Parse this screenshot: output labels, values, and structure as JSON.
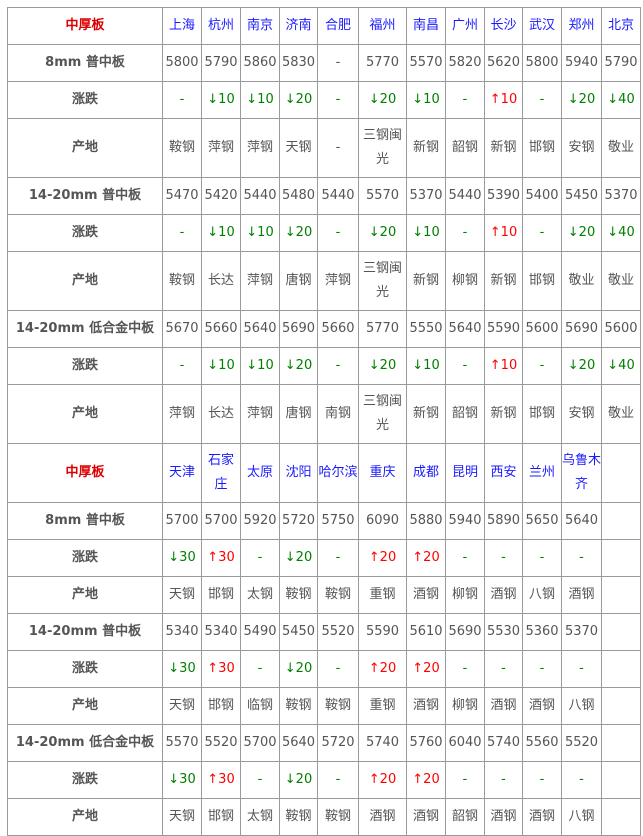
{
  "colors": {
    "header": "#dd0000",
    "city": "#1a1aff",
    "up": "#ff0000",
    "down": "#008000"
  },
  "sections": [
    {
      "header": "中厚板",
      "cities": [
        "上海",
        "杭州",
        "南京",
        "济南",
        "合肥",
        "福州",
        "南昌",
        "广州",
        "长沙",
        "武汉",
        "郑州",
        "北京"
      ],
      "products": [
        {
          "name": "8mm 普中板",
          "prices": [
            "5800",
            "5790",
            "5860",
            "5830",
            "-",
            "5770",
            "5570",
            "5820",
            "5620",
            "5800",
            "5940",
            "5790"
          ],
          "change_label": "涨跌",
          "changes": [
            "-",
            "↓10",
            "↓10",
            "↓20",
            "-",
            "↓20",
            "↓10",
            "-",
            "↑10",
            "-",
            "↓20",
            "↓40"
          ],
          "origin_label": "产地",
          "origins": [
            "鞍钢",
            "萍钢",
            "萍钢",
            "天钢",
            "-",
            "三钢闽光",
            "新钢",
            "韶钢",
            "新钢",
            "邯钢",
            "安钢",
            "敬业"
          ]
        },
        {
          "name": "14-20mm 普中板",
          "prices": [
            "5470",
            "5420",
            "5440",
            "5480",
            "5440",
            "5570",
            "5370",
            "5440",
            "5390",
            "5400",
            "5450",
            "5370"
          ],
          "change_label": "涨跌",
          "changes": [
            "-",
            "↓10",
            "↓10",
            "↓20",
            "-",
            "↓20",
            "↓10",
            "-",
            "↑10",
            "-",
            "↓20",
            "↓40"
          ],
          "origin_label": "产地",
          "origins": [
            "鞍钢",
            "长达",
            "萍钢",
            "唐钢",
            "萍钢",
            "三钢闽光",
            "新钢",
            "柳钢",
            "新钢",
            "邯钢",
            "敬业",
            "敬业"
          ]
        },
        {
          "name": "14-20mm 低合金中板",
          "prices": [
            "5670",
            "5660",
            "5640",
            "5690",
            "5660",
            "5770",
            "5550",
            "5640",
            "5590",
            "5600",
            "5690",
            "5600"
          ],
          "change_label": "涨跌",
          "changes": [
            "-",
            "↓10",
            "↓10",
            "↓20",
            "-",
            "↓20",
            "↓10",
            "-",
            "↑10",
            "-",
            "↓20",
            "↓40"
          ],
          "origin_label": "产地",
          "origins": [
            "萍钢",
            "长达",
            "萍钢",
            "唐钢",
            "南钢",
            "三钢闽光",
            "新钢",
            "韶钢",
            "新钢",
            "邯钢",
            "安钢",
            "敬业"
          ]
        }
      ]
    },
    {
      "header": "中厚板",
      "cities": [
        "天津",
        "石家庄",
        "太原",
        "沈阳",
        "哈尔滨",
        "重庆",
        "成都",
        "昆明",
        "西安",
        "兰州",
        "乌鲁木齐",
        ""
      ],
      "products": [
        {
          "name": "8mm 普中板",
          "prices": [
            "5700",
            "5700",
            "5920",
            "5720",
            "5750",
            "6090",
            "5880",
            "5940",
            "5890",
            "5650",
            "5640",
            ""
          ],
          "change_label": "涨跌",
          "changes": [
            "↓30",
            "↑30",
            "-",
            "↓20",
            "-",
            "↑20",
            "↑20",
            "-",
            "-",
            "-",
            "-",
            ""
          ],
          "origin_label": "产地",
          "origins": [
            "天钢",
            "邯钢",
            "太钢",
            "鞍钢",
            "鞍钢",
            "重钢",
            "酒钢",
            "柳钢",
            "酒钢",
            "八钢",
            "酒钢",
            ""
          ]
        },
        {
          "name": "14-20mm 普中板",
          "prices": [
            "5340",
            "5340",
            "5490",
            "5450",
            "5520",
            "5590",
            "5610",
            "5690",
            "5530",
            "5360",
            "5370",
            ""
          ],
          "change_label": "涨跌",
          "changes": [
            "↓30",
            "↑30",
            "-",
            "↓20",
            "-",
            "↑20",
            "↑20",
            "-",
            "-",
            "-",
            "-",
            ""
          ],
          "origin_label": "产地",
          "origins": [
            "天钢",
            "邯钢",
            "临钢",
            "鞍钢",
            "鞍钢",
            "重钢",
            "酒钢",
            "柳钢",
            "酒钢",
            "酒钢",
            "八钢",
            ""
          ]
        },
        {
          "name": "14-20mm 低合金中板",
          "prices": [
            "5570",
            "5520",
            "5700",
            "5640",
            "5720",
            "5740",
            "5760",
            "6040",
            "5740",
            "5560",
            "5520",
            ""
          ],
          "change_label": "涨跌",
          "changes": [
            "↓30",
            "↑30",
            "-",
            "↓20",
            "-",
            "↑20",
            "↑20",
            "-",
            "-",
            "-",
            "-",
            ""
          ],
          "origin_label": "产地",
          "origins": [
            "天钢",
            "邯钢",
            "太钢",
            "鞍钢",
            "鞍钢",
            "酒钢",
            "酒钢",
            "韶钢",
            "酒钢",
            "酒钢",
            "八钢",
            ""
          ]
        }
      ]
    }
  ]
}
